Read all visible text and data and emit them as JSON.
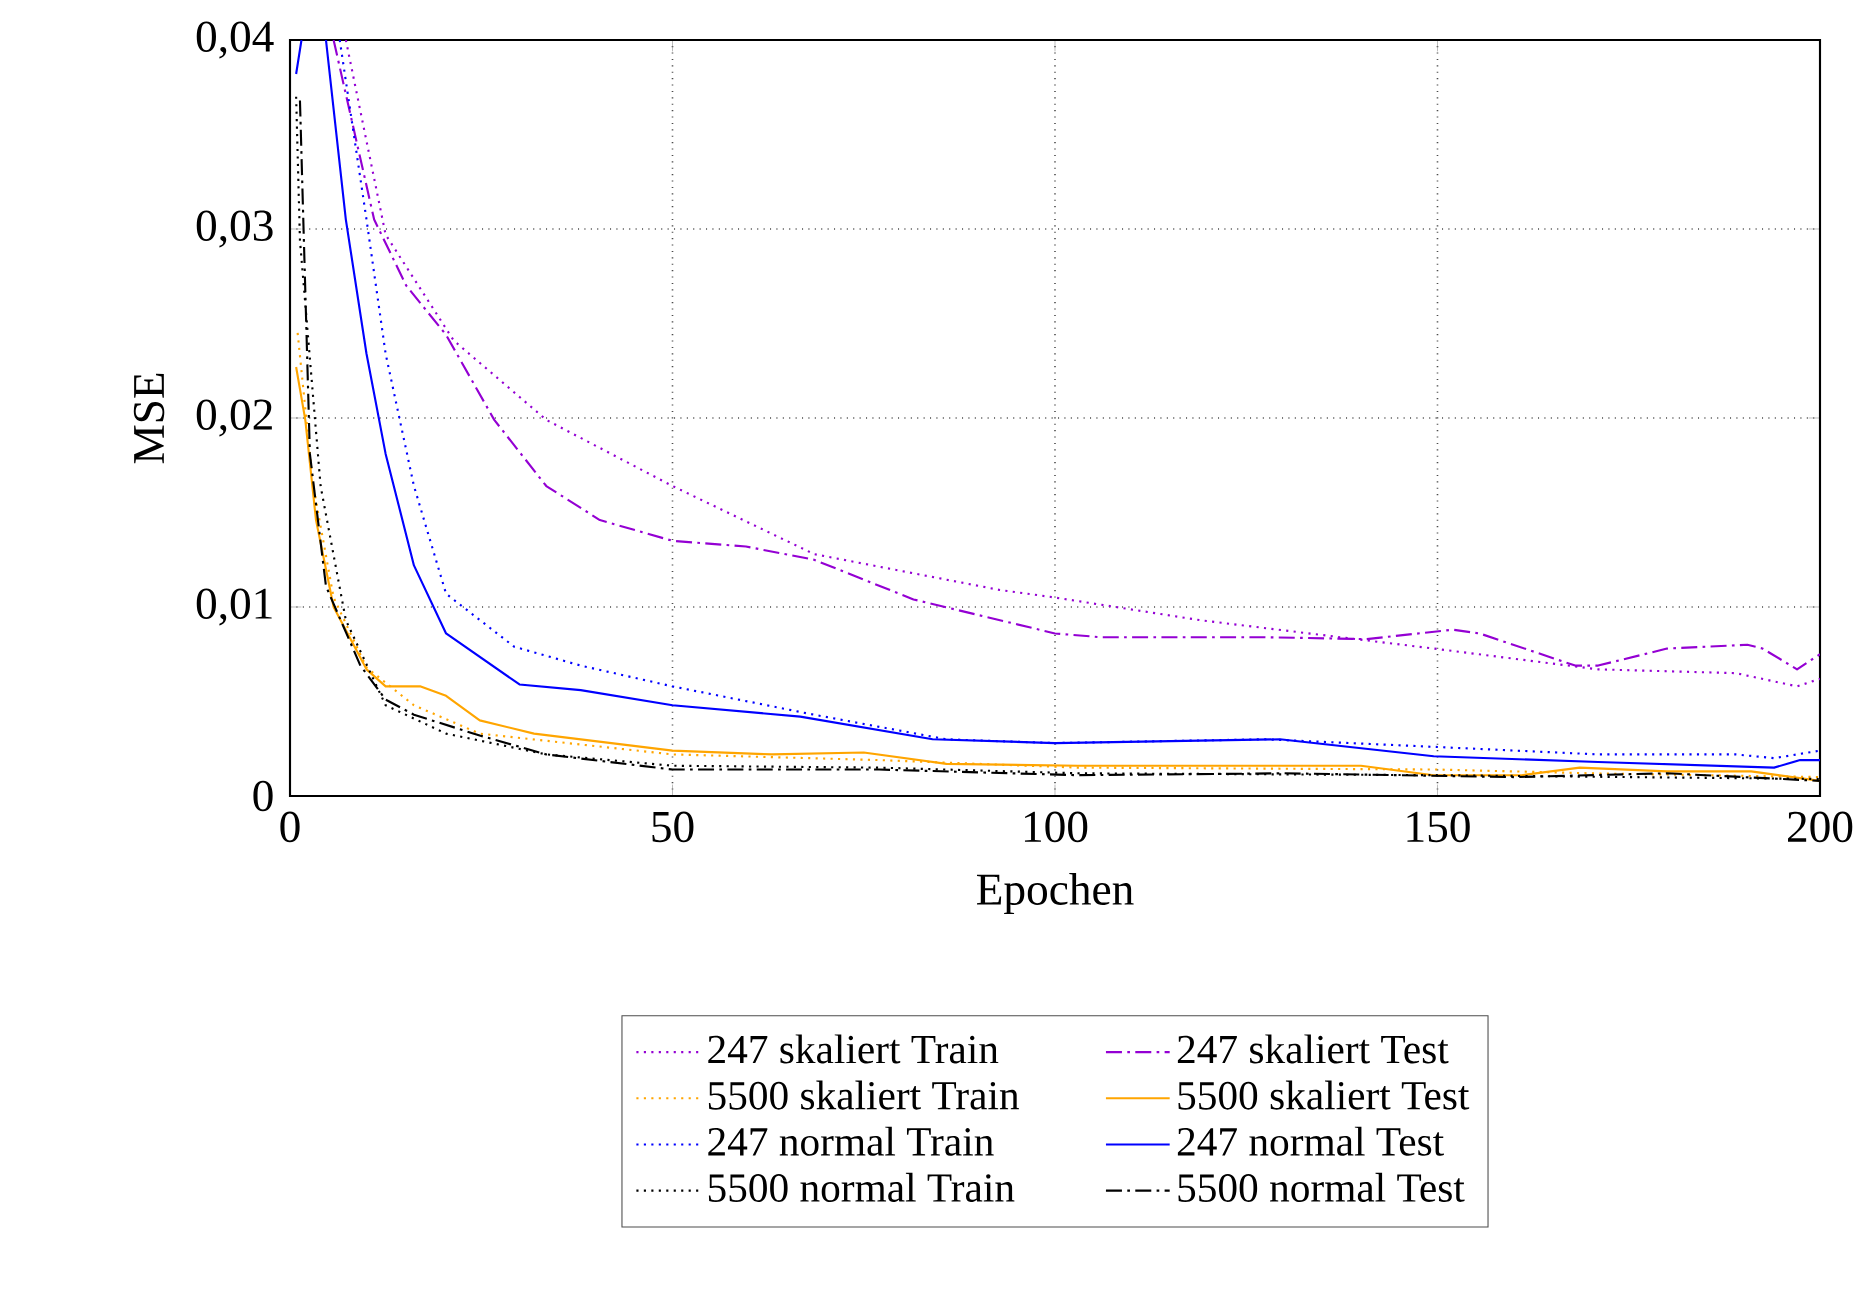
{
  "chart_data": {
    "type": "line",
    "xlabel": "Epochen",
    "ylabel": "MSE",
    "xlim": [
      0,
      200
    ],
    "ylim": [
      0,
      0.04
    ],
    "xticks": [
      0,
      50,
      100,
      150,
      200
    ],
    "yticks": [
      0,
      {
        "value": 0.01,
        "label": "0,01"
      },
      {
        "value": 0.02,
        "label": "0,02"
      },
      {
        "value": 0.03,
        "label": "0,03"
      },
      {
        "value": 0.04,
        "label": "0,04"
      }
    ],
    "grid": true,
    "legend": "bottom",
    "marker": "none",
    "series": [
      {
        "name": "247 skaliert Train",
        "color": "#9400d3",
        "line_style": "dotted",
        "x": [
          7.3,
          12.5,
          21.4,
          33.5,
          50,
          68.5,
          92.8,
          100,
          119,
          149.5,
          171,
          189,
          197,
          200
        ],
        "values": [
          0.04,
          0.0297,
          0.0241,
          0.0199,
          0.0164,
          0.0128,
          0.0109,
          0.0105,
          0.0093,
          0.0078,
          0.0067,
          0.0065,
          0.0058,
          0.0062
        ]
      },
      {
        "name": "247 skaliert Test",
        "color": "#9400d3",
        "line_style": "dashdot",
        "x": [
          5.7,
          11,
          15.2,
          20.4,
          26.7,
          33.5,
          40.5,
          50,
          59.6,
          68.5,
          81.5,
          100,
          106,
          127.5,
          140.7,
          152,
          155.5,
          168,
          171,
          180,
          190.5,
          192.5,
          197,
          200
        ],
        "values": [
          0.04,
          0.0305,
          0.027,
          0.0244,
          0.0199,
          0.0164,
          0.0146,
          0.0135,
          0.0132,
          0.0125,
          0.0104,
          0.0086,
          0.0084,
          0.0084,
          0.0083,
          0.0088,
          0.0086,
          0.0069,
          0.0069,
          0.0078,
          0.008,
          0.0078,
          0.0067,
          0.0075
        ]
      },
      {
        "name": "5500 skaliert Train",
        "color": "#ffa500",
        "line_style": "dotted",
        "x": [
          1,
          3,
          5.7,
          10,
          16.2,
          24.8,
          50,
          77,
          103,
          150,
          170,
          200
        ],
        "values": [
          0.0245,
          0.0165,
          0.0105,
          0.0068,
          0.0048,
          0.0033,
          0.0022,
          0.0019,
          0.0015,
          0.0014,
          0.0012,
          0.001
        ]
      },
      {
        "name": "5500 skaliert Test",
        "color": "#ffa500",
        "line_style": "solid",
        "x": [
          0.8,
          2,
          3.4,
          5.7,
          10,
          12.5,
          17,
          20.4,
          24.8,
          31.9,
          50,
          63,
          75,
          85.8,
          103,
          140,
          149.5,
          161,
          168.6,
          180,
          191,
          200
        ],
        "values": [
          0.0227,
          0.0199,
          0.0146,
          0.01,
          0.0067,
          0.0058,
          0.0058,
          0.0053,
          0.004,
          0.0033,
          0.0024,
          0.0022,
          0.0023,
          0.0017,
          0.0016,
          0.0016,
          0.0011,
          0.0011,
          0.0015,
          0.0013,
          0.0013,
          0.0008
        ]
      },
      {
        "name": "247 normal Train",
        "color": "#0000ff",
        "line_style": "dotted",
        "x": [
          6.5,
          10,
          12.5,
          16.2,
          20.4,
          29.3,
          38,
          50,
          68.5,
          85.8,
          100,
          127.5,
          149.5,
          171,
          189,
          194,
          200
        ],
        "values": [
          0.04,
          0.0305,
          0.0234,
          0.0164,
          0.0107,
          0.0079,
          0.0069,
          0.0058,
          0.0043,
          0.003,
          0.0028,
          0.003,
          0.0026,
          0.0022,
          0.0022,
          0.002,
          0.0024
        ]
      },
      {
        "name": "247 normal Test",
        "color": "#0000ff",
        "line_style": "solid",
        "x": [
          0.8,
          1.5,
          3,
          4.7,
          7.3,
          10,
          12.5,
          16.2,
          20.4,
          30,
          38,
          50,
          66.7,
          84,
          100,
          129.4,
          149.5,
          171,
          194,
          197.4,
          200
        ],
        "values": [
          0.0382,
          0.04,
          null,
          0.04,
          0.0305,
          0.0234,
          0.0181,
          0.0122,
          0.0086,
          0.0059,
          0.0056,
          0.0048,
          0.0042,
          0.003,
          0.0028,
          0.003,
          0.0021,
          0.0018,
          0.0015,
          0.0019,
          0.0019
        ]
      },
      {
        "name": "5500 normal Train",
        "color": "#000000",
        "line_style": "dotted",
        "x": [
          0.8,
          1.3,
          4,
          7.3,
          12.5,
          20.4,
          33.5,
          50,
          77,
          103,
          150,
          175,
          200
        ],
        "values": [
          0.037,
          0.0294,
          0.0164,
          0.0093,
          0.0048,
          0.0033,
          0.0022,
          0.0016,
          0.0015,
          0.0012,
          0.0011,
          0.001,
          0.0009
        ]
      },
      {
        "name": "5500 normal Test",
        "color": "#000000",
        "line_style": "dashdot",
        "x": [
          1.3,
          2.6,
          4.7,
          9.2,
          12.5,
          16.2,
          24.8,
          33.5,
          50,
          77,
          103,
          130,
          160,
          180,
          200
        ],
        "values": [
          0.0368,
          0.0181,
          0.0111,
          0.0069,
          0.0051,
          0.0043,
          0.0032,
          0.0022,
          0.0014,
          0.0014,
          0.0011,
          0.0012,
          0.001,
          0.0012,
          0.0008
        ]
      }
    ]
  }
}
